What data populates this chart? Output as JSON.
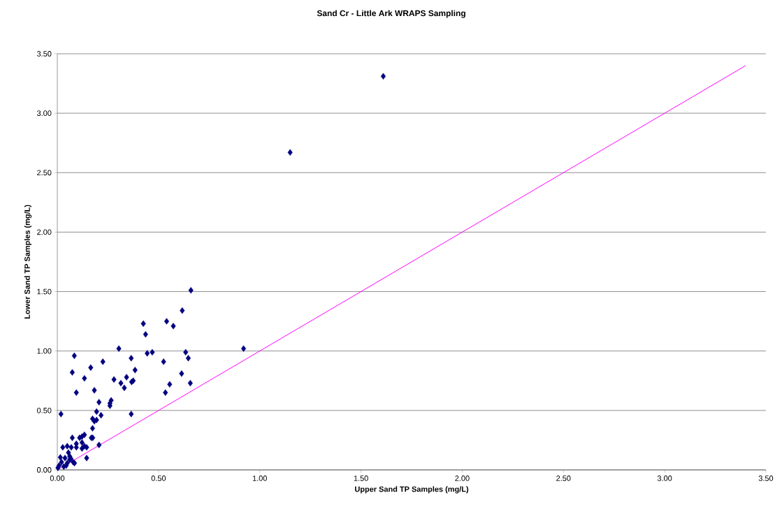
{
  "chart_data": {
    "type": "scatter",
    "title": "Sand Cr - Little Ark WRAPS Sampling",
    "xlabel": "Upper Sand TP Samples (mg/L)",
    "ylabel": "Lower Sand TP Samples (mg/L)",
    "xlim": [
      0,
      3.5
    ],
    "ylim": [
      0,
      3.5
    ],
    "xticks": [
      {
        "value": 0,
        "label": "0.00"
      },
      {
        "value": 0.5,
        "label": "0.50"
      },
      {
        "value": 1,
        "label": "1.00"
      },
      {
        "value": 1.5,
        "label": "1.50"
      },
      {
        "value": 2,
        "label": "2.00"
      },
      {
        "value": 2.5,
        "label": "2.50"
      },
      {
        "value": 3,
        "label": "3.00"
      },
      {
        "value": 3.5,
        "label": "3.50"
      }
    ],
    "yticks": [
      {
        "value": 0,
        "label": "0.00"
      },
      {
        "value": 0.5,
        "label": "0.50"
      },
      {
        "value": 1,
        "label": "1.00"
      },
      {
        "value": 1.5,
        "label": "1.50"
      },
      {
        "value": 2,
        "label": "2.00"
      },
      {
        "value": 2.5,
        "label": "2.50"
      },
      {
        "value": 3,
        "label": "3.00"
      },
      {
        "value": 3.5,
        "label": "3.50"
      }
    ],
    "grid": "y",
    "series": [
      {
        "color": "#000080",
        "marker": "diamond",
        "x": [
          1.61,
          1.15,
          0.92,
          0.66,
          0.617,
          0.425,
          0.54,
          0.573,
          0.436,
          0.304,
          0.084,
          0.444,
          0.469,
          0.634,
          0.647,
          0.365,
          0.225,
          0.525,
          0.165,
          0.384,
          0.074,
          0.614,
          0.134,
          0.28,
          0.342,
          0.314,
          0.367,
          0.375,
          0.331,
          0.555,
          0.657,
          0.094,
          0.183,
          0.534,
          0.266,
          0.26,
          0.26,
          0.206,
          0.018,
          0.365,
          0.194,
          0.216,
          0.174,
          0.194,
          0.183,
          0.174,
          0.074,
          0.168,
          0.11,
          0.122,
          0.134,
          0.175,
          0.094,
          0.094,
          0.122,
          0.134,
          0.145,
          0.122,
          0.206,
          0.145,
          0.027,
          0.049,
          0.069,
          0.055,
          0.061,
          0.015,
          0.038,
          0.067,
          0.085,
          0.078,
          0.049,
          0.021,
          0.009,
          0.032,
          0.003,
          0.044,
          0.061
        ],
        "values": [
          3.31,
          2.67,
          1.02,
          1.51,
          1.34,
          1.23,
          1.25,
          1.21,
          1.14,
          1.02,
          0.96,
          0.98,
          0.99,
          0.99,
          0.94,
          0.94,
          0.91,
          0.91,
          0.86,
          0.84,
          0.82,
          0.81,
          0.77,
          0.76,
          0.78,
          0.73,
          0.74,
          0.75,
          0.69,
          0.72,
          0.73,
          0.65,
          0.67,
          0.65,
          0.585,
          0.56,
          0.54,
          0.57,
          0.47,
          0.47,
          0.49,
          0.46,
          0.43,
          0.42,
          0.41,
          0.35,
          0.27,
          0.27,
          0.27,
          0.28,
          0.295,
          0.27,
          0.22,
          0.19,
          0.23,
          0.2,
          0.19,
          0.18,
          0.21,
          0.1,
          0.19,
          0.2,
          0.19,
          0.145,
          0.115,
          0.105,
          0.1,
          0.096,
          0.057,
          0.066,
          0.057,
          0.066,
          0.037,
          0.028,
          0.018,
          0.037,
          0.086
        ]
      },
      {
        "type": "line",
        "color": "#ff00ff",
        "marker": "none",
        "line_style": "solid",
        "x": [
          0,
          3.4
        ],
        "values": [
          0,
          3.4
        ]
      }
    ]
  }
}
